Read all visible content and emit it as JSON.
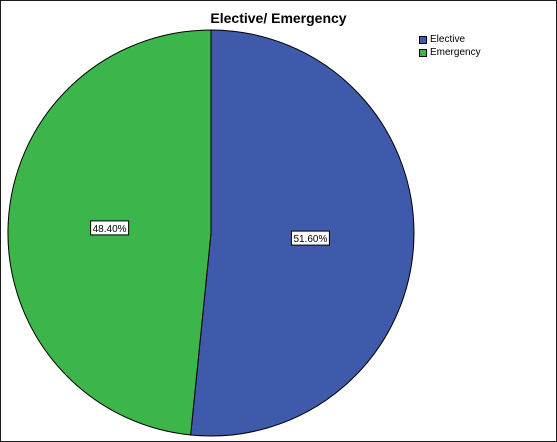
{
  "chart_data": {
    "type": "pie",
    "title": "Elective/ Emergency",
    "labels": [
      "Elective",
      "Emergency"
    ],
    "values": [
      51.6,
      48.4
    ],
    "data_labels": [
      "51.60%",
      "48.40%"
    ],
    "colors": [
      "#3f5aaa",
      "#3cb54a"
    ],
    "start_angle_deg": 0,
    "direction": "clockwise",
    "legend_position": "top-right"
  }
}
